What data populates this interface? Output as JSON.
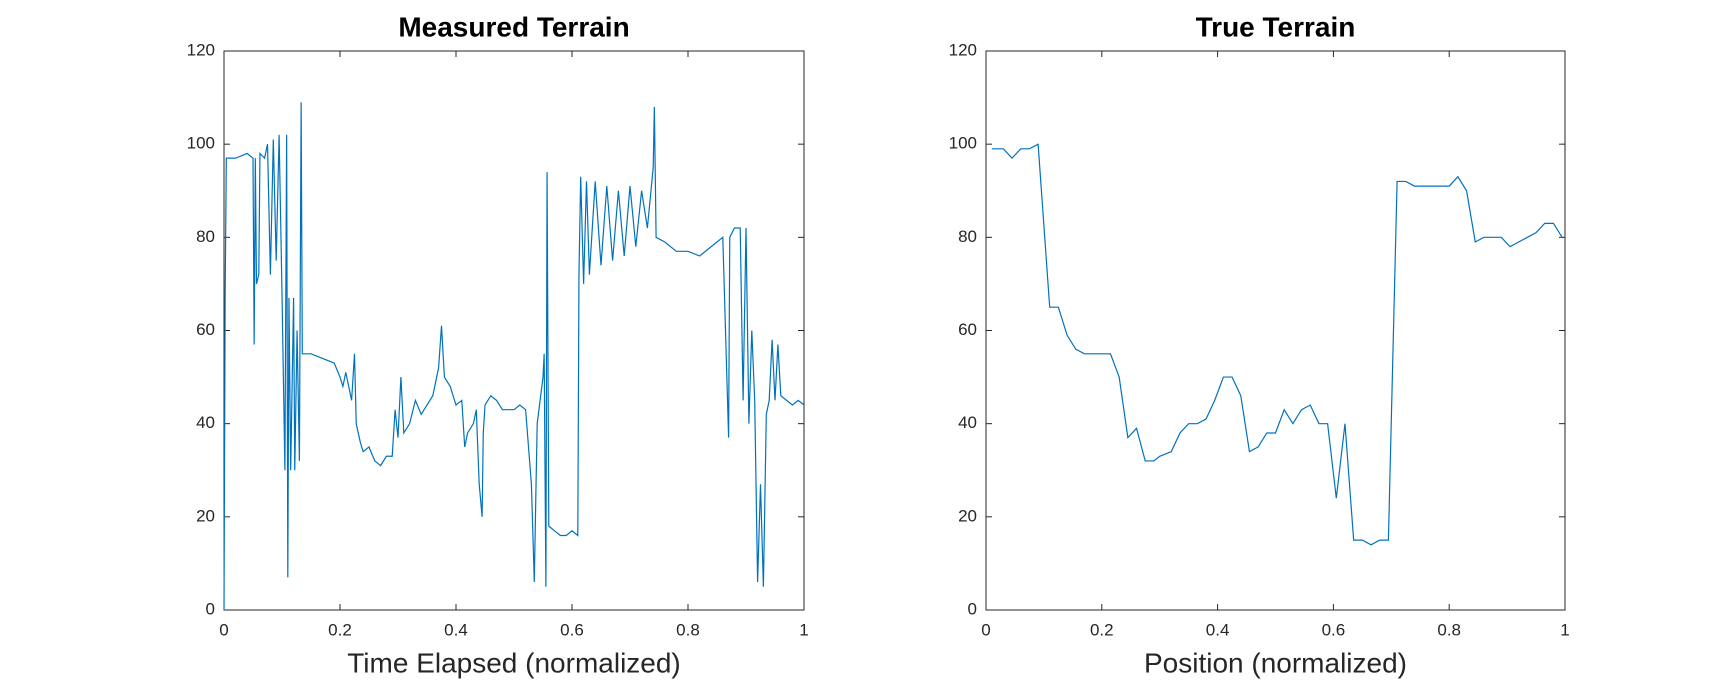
{
  "chart_data": [
    {
      "type": "line",
      "title": "Measured Terrain",
      "x_label": "Time Elapsed (normalized)",
      "xlim": [
        0,
        1
      ],
      "xticks": [
        0,
        0.2,
        0.4,
        0.6,
        0.8,
        1
      ],
      "ylim": [
        0,
        120
      ],
      "yticks": [
        0,
        20,
        40,
        60,
        80,
        100,
        120
      ],
      "grid": false,
      "series": [
        {
          "color": "#0072bd",
          "x": [
            0,
            0.002,
            0.004,
            0.02,
            0.04,
            0.05,
            0.052,
            0.054,
            0.056,
            0.06,
            0.062,
            0.07,
            0.075,
            0.08,
            0.085,
            0.09,
            0.095,
            0.1,
            0.105,
            0.108,
            0.11,
            0.112,
            0.115,
            0.12,
            0.122,
            0.126,
            0.13,
            0.133,
            0.135,
            0.15,
            0.17,
            0.19,
            0.2,
            0.205,
            0.21,
            0.22,
            0.225,
            0.228,
            0.235,
            0.24,
            0.25,
            0.26,
            0.27,
            0.28,
            0.29,
            0.295,
            0.3,
            0.305,
            0.31,
            0.32,
            0.33,
            0.34,
            0.35,
            0.36,
            0.37,
            0.375,
            0.38,
            0.39,
            0.4,
            0.41,
            0.415,
            0.42,
            0.43,
            0.435,
            0.44,
            0.445,
            0.447,
            0.45,
            0.46,
            0.47,
            0.48,
            0.5,
            0.51,
            0.52,
            0.53,
            0.535,
            0.538,
            0.54,
            0.55,
            0.552,
            0.555,
            0.557,
            0.56,
            0.57,
            0.58,
            0.59,
            0.6,
            0.61,
            0.612,
            0.615,
            0.62,
            0.625,
            0.63,
            0.64,
            0.65,
            0.66,
            0.67,
            0.68,
            0.69,
            0.7,
            0.71,
            0.72,
            0.73,
            0.74,
            0.742,
            0.745,
            0.76,
            0.78,
            0.8,
            0.82,
            0.84,
            0.86,
            0.87,
            0.872,
            0.88,
            0.89,
            0.895,
            0.9,
            0.905,
            0.91,
            0.915,
            0.92,
            0.925,
            0.93,
            0.935,
            0.94,
            0.945,
            0.95,
            0.955,
            0.96,
            0.97,
            0.98,
            0.99,
            1
          ],
          "values": [
            0,
            68,
            97,
            97,
            98,
            97,
            57,
            97,
            70,
            72,
            98,
            97,
            100,
            72,
            101,
            75,
            102,
            68,
            30,
            102,
            7,
            67,
            30,
            67,
            30,
            60,
            32,
            109,
            55,
            55,
            54,
            53,
            50,
            48,
            51,
            45,
            55,
            40,
            36,
            34,
            35,
            32,
            31,
            33,
            33,
            43,
            37,
            50,
            38,
            40,
            45,
            42,
            44,
            46,
            52,
            61,
            50,
            48,
            44,
            45,
            35,
            38,
            40,
            43,
            27,
            20,
            38,
            44,
            46,
            45,
            43,
            43,
            44,
            43,
            27,
            6,
            27,
            40,
            50,
            55,
            5,
            94,
            18,
            17,
            16,
            16,
            17,
            16,
            72,
            93,
            70,
            92,
            72,
            92,
            74,
            91,
            75,
            90,
            76,
            91,
            78,
            90,
            82,
            95,
            108,
            80,
            79,
            77,
            77,
            76,
            78,
            80,
            37,
            80,
            82,
            82,
            45,
            82,
            40,
            60,
            45,
            6,
            27,
            5,
            42,
            45,
            58,
            45,
            57,
            46,
            45,
            44,
            45,
            44
          ]
        }
      ]
    },
    {
      "type": "line",
      "title": "True Terrain",
      "x_label": "Position (normalized)",
      "xlim": [
        0,
        1
      ],
      "xticks": [
        0,
        0.2,
        0.4,
        0.6,
        0.8,
        1
      ],
      "ylim": [
        0,
        120
      ],
      "yticks": [
        0,
        20,
        40,
        60,
        80,
        100,
        120
      ],
      "grid": false,
      "series": [
        {
          "color": "#0072bd",
          "x": [
            0.01,
            0.03,
            0.045,
            0.06,
            0.075,
            0.09,
            0.11,
            0.125,
            0.14,
            0.155,
            0.17,
            0.2,
            0.215,
            0.23,
            0.245,
            0.26,
            0.275,
            0.29,
            0.3,
            0.32,
            0.335,
            0.35,
            0.365,
            0.38,
            0.395,
            0.41,
            0.425,
            0.44,
            0.455,
            0.47,
            0.485,
            0.5,
            0.515,
            0.53,
            0.545,
            0.56,
            0.575,
            0.59,
            0.605,
            0.62,
            0.635,
            0.65,
            0.665,
            0.68,
            0.695,
            0.71,
            0.725,
            0.74,
            0.76,
            0.78,
            0.8,
            0.815,
            0.83,
            0.845,
            0.86,
            0.875,
            0.89,
            0.905,
            0.92,
            0.935,
            0.95,
            0.965,
            0.98,
            0.995
          ],
          "values": [
            99,
            99,
            97,
            99,
            99,
            100,
            65,
            65,
            59,
            56,
            55,
            55,
            55,
            50,
            37,
            39,
            32,
            32,
            33,
            34,
            38,
            40,
            40,
            41,
            45,
            50,
            50,
            46,
            34,
            35,
            38,
            38,
            43,
            40,
            43,
            44,
            40,
            40,
            24,
            40,
            15,
            15,
            14,
            15,
            15,
            92,
            92,
            91,
            91,
            91,
            91,
            93,
            90,
            79,
            80,
            80,
            80,
            78,
            79,
            80,
            81,
            83,
            83,
            80
          ]
        }
      ]
    }
  ]
}
